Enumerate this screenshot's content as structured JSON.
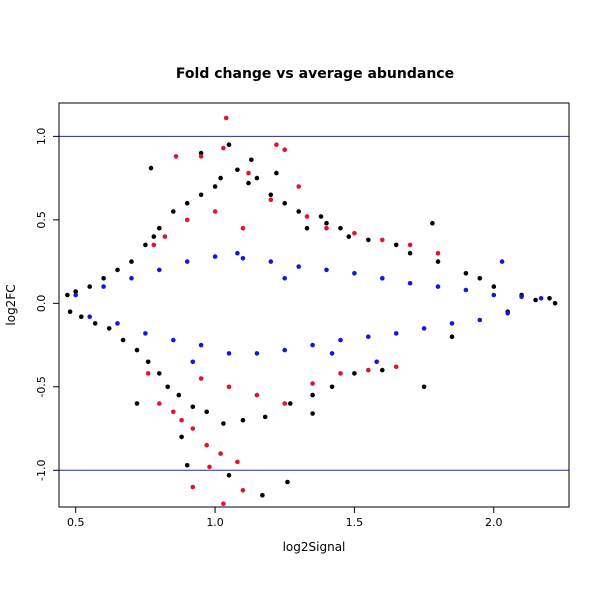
{
  "chart_data": {
    "type": "scatter",
    "title": "Fold change vs average abundance",
    "xlabel": "log2Signal",
    "ylabel": "log2FC",
    "xlim": [
      0.44,
      2.27
    ],
    "ylim": [
      -1.22,
      1.2
    ],
    "x_ticks": [
      0.5,
      1.0,
      1.5,
      2.0
    ],
    "x_tick_labels": [
      "0.5",
      "1.0",
      "1.5",
      "2.0"
    ],
    "y_ticks": [
      -1.0,
      -0.5,
      0.0,
      0.5,
      1.0
    ],
    "y_tick_labels": [
      "-1.0",
      "-0.5",
      "0.0",
      "0.5",
      "1.0"
    ],
    "hlines": [
      -1.0,
      1.0
    ],
    "grid": false,
    "legend": "none",
    "colors": {
      "black": "#000000",
      "red": "#e8102a",
      "blue": "#1414e6",
      "threshold_line": "#2a2a9a"
    },
    "series": [
      {
        "color_key": "black",
        "points": [
          [
            0.47,
            0.05
          ],
          [
            0.48,
            -0.05
          ],
          [
            0.5,
            0.07
          ],
          [
            0.52,
            -0.08
          ],
          [
            0.55,
            0.1
          ],
          [
            0.57,
            -0.12
          ],
          [
            0.6,
            0.15
          ],
          [
            0.62,
            -0.15
          ],
          [
            0.65,
            0.2
          ],
          [
            0.67,
            -0.22
          ],
          [
            0.7,
            0.25
          ],
          [
            0.72,
            -0.28
          ],
          [
            0.75,
            0.35
          ],
          [
            0.76,
            -0.35
          ],
          [
            0.78,
            0.4
          ],
          [
            0.8,
            -0.42
          ],
          [
            0.77,
            0.81
          ],
          [
            0.8,
            0.45
          ],
          [
            0.83,
            -0.5
          ],
          [
            0.85,
            0.55
          ],
          [
            0.87,
            -0.55
          ],
          [
            0.9,
            0.6
          ],
          [
            0.9,
            -0.97
          ],
          [
            0.92,
            -0.62
          ],
          [
            0.95,
            0.65
          ],
          [
            0.97,
            -0.65
          ],
          [
            1.0,
            0.7
          ],
          [
            1.02,
            0.75
          ],
          [
            1.03,
            -0.72
          ],
          [
            1.05,
            0.95
          ],
          [
            1.08,
            0.8
          ],
          [
            1.1,
            -0.7
          ],
          [
            1.12,
            0.72
          ],
          [
            1.15,
            0.75
          ],
          [
            1.18,
            -0.68
          ],
          [
            1.2,
            0.65
          ],
          [
            1.22,
            0.78
          ],
          [
            1.25,
            0.6
          ],
          [
            1.27,
            -0.6
          ],
          [
            1.3,
            0.55
          ],
          [
            1.33,
            0.45
          ],
          [
            1.35,
            -0.55
          ],
          [
            1.38,
            0.52
          ],
          [
            1.4,
            0.48
          ],
          [
            1.42,
            -0.5
          ],
          [
            1.45,
            0.45
          ],
          [
            1.48,
            0.4
          ],
          [
            1.5,
            -0.42
          ],
          [
            1.55,
            0.38
          ],
          [
            1.6,
            -0.4
          ],
          [
            1.65,
            0.35
          ],
          [
            1.7,
            0.3
          ],
          [
            1.75,
            -0.5
          ],
          [
            1.78,
            0.48
          ],
          [
            1.8,
            0.25
          ],
          [
            1.85,
            -0.2
          ],
          [
            1.9,
            0.18
          ],
          [
            1.95,
            0.15
          ],
          [
            2.0,
            0.1
          ],
          [
            2.05,
            -0.05
          ],
          [
            2.1,
            0.05
          ],
          [
            2.15,
            0.02
          ],
          [
            2.2,
            0.03
          ],
          [
            2.22,
            0.0
          ],
          [
            1.17,
            -1.15
          ],
          [
            1.26,
            -1.07
          ],
          [
            1.05,
            -1.03
          ],
          [
            0.95,
            0.9
          ],
          [
            1.13,
            0.86
          ],
          [
            0.88,
            -0.8
          ],
          [
            1.35,
            -0.66
          ],
          [
            0.72,
            -0.6
          ]
        ]
      },
      {
        "color_key": "red",
        "points": [
          [
            1.04,
            1.11
          ],
          [
            0.95,
            0.88
          ],
          [
            1.03,
            0.93
          ],
          [
            1.22,
            0.95
          ],
          [
            1.25,
            0.92
          ],
          [
            0.86,
            0.88
          ],
          [
            1.12,
            0.78
          ],
          [
            1.3,
            0.7
          ],
          [
            1.2,
            0.62
          ],
          [
            1.0,
            0.55
          ],
          [
            0.9,
            0.5
          ],
          [
            1.4,
            0.45
          ],
          [
            1.5,
            0.42
          ],
          [
            1.6,
            0.38
          ],
          [
            1.7,
            0.35
          ],
          [
            1.8,
            0.3
          ],
          [
            0.82,
            0.4
          ],
          [
            0.78,
            0.35
          ],
          [
            1.1,
            0.45
          ],
          [
            1.33,
            0.52
          ],
          [
            0.95,
            -0.45
          ],
          [
            1.05,
            -0.5
          ],
          [
            1.15,
            -0.55
          ],
          [
            1.25,
            -0.6
          ],
          [
            1.35,
            -0.48
          ],
          [
            1.45,
            -0.42
          ],
          [
            1.55,
            -0.4
          ],
          [
            1.65,
            -0.38
          ],
          [
            0.85,
            -0.65
          ],
          [
            0.88,
            -0.7
          ],
          [
            0.92,
            -0.75
          ],
          [
            0.97,
            -0.85
          ],
          [
            1.02,
            -0.9
          ],
          [
            1.08,
            -0.95
          ],
          [
            0.92,
            -1.1
          ],
          [
            1.1,
            -1.12
          ],
          [
            1.03,
            -1.2
          ],
          [
            0.98,
            -0.98
          ],
          [
            0.76,
            -0.42
          ],
          [
            0.8,
            -0.6
          ]
        ]
      },
      {
        "color_key": "blue",
        "points": [
          [
            0.5,
            0.05
          ],
          [
            0.55,
            -0.08
          ],
          [
            0.6,
            0.1
          ],
          [
            0.65,
            -0.12
          ],
          [
            0.7,
            0.15
          ],
          [
            0.75,
            -0.18
          ],
          [
            0.8,
            0.2
          ],
          [
            0.85,
            -0.22
          ],
          [
            0.9,
            0.25
          ],
          [
            0.95,
            -0.25
          ],
          [
            1.0,
            0.28
          ],
          [
            1.05,
            -0.3
          ],
          [
            1.1,
            0.27
          ],
          [
            1.15,
            -0.3
          ],
          [
            1.2,
            0.25
          ],
          [
            1.25,
            -0.28
          ],
          [
            1.3,
            0.22
          ],
          [
            1.35,
            -0.25
          ],
          [
            1.4,
            0.2
          ],
          [
            1.45,
            -0.22
          ],
          [
            1.5,
            0.18
          ],
          [
            1.55,
            -0.2
          ],
          [
            1.6,
            0.15
          ],
          [
            1.65,
            -0.18
          ],
          [
            1.7,
            0.12
          ],
          [
            1.75,
            -0.15
          ],
          [
            1.8,
            0.1
          ],
          [
            1.85,
            -0.12
          ],
          [
            1.9,
            0.08
          ],
          [
            1.95,
            -0.1
          ],
          [
            2.0,
            0.05
          ],
          [
            2.05,
            -0.06
          ],
          [
            2.1,
            0.04
          ],
          [
            2.17,
            0.03
          ],
          [
            2.03,
            0.25
          ],
          [
            1.58,
            -0.35
          ],
          [
            1.42,
            -0.3
          ],
          [
            0.92,
            -0.35
          ],
          [
            1.08,
            0.3
          ],
          [
            1.25,
            0.15
          ]
        ]
      }
    ]
  }
}
